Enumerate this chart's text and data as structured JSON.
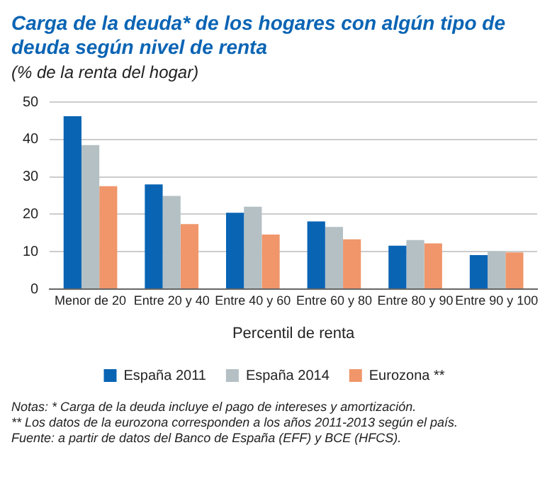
{
  "chart_data": {
    "type": "bar",
    "title": "Carga de la deuda* de los hogares con algún tipo de deuda según nivel de renta",
    "subtitle": "(% de la renta del hogar)",
    "xlabel": "Percentil de renta",
    "categories": [
      "Menor de 20",
      "Entre 20 y 40",
      "Entre 40 y 60",
      "Entre 60 y 80",
      "Entre 80 y 90",
      "Entre 90 y 100"
    ],
    "series": [
      {
        "name": "España 2011",
        "color": "#0a64b4",
        "values": [
          46.2,
          28.0,
          20.4,
          18.1,
          11.6,
          9.1
        ]
      },
      {
        "name": "España 2014",
        "color": "#b4c0c4",
        "values": [
          38.5,
          24.9,
          22.0,
          16.6,
          13.1,
          10.1
        ]
      },
      {
        "name": "Eurozona **",
        "color": "#f0966a",
        "values": [
          27.5,
          17.4,
          14.6,
          13.3,
          12.2,
          9.8
        ]
      }
    ],
    "ylim": [
      0,
      50
    ],
    "yticks": [
      0,
      10,
      20,
      30,
      40,
      50
    ],
    "grid": "y",
    "legend": "bottom",
    "annotations": [
      "Notas: * Carga de la deuda incluye el pago de intereses y amortización.",
      "** Los datos de la eurozona corresponden a los años 2011-2013 según el país.",
      "Fuente: a partir de datos del Banco de España (EFF) y BCE (HFCS)."
    ]
  }
}
